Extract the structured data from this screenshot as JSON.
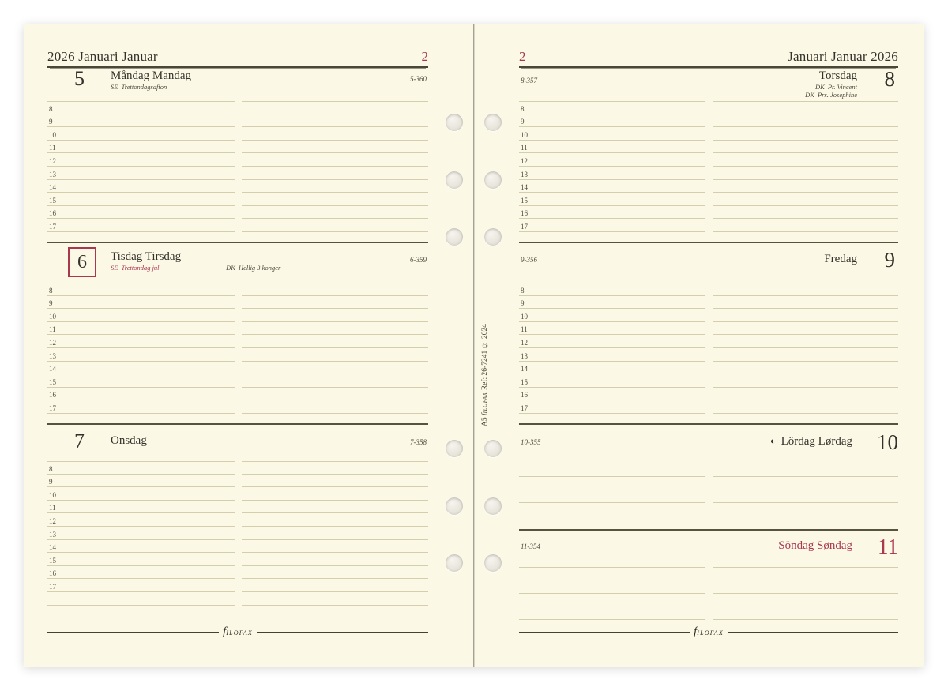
{
  "colors": {
    "accent": "#a93750",
    "paper": "#fbf8e6",
    "rule": "#d5cead"
  },
  "hours": [
    "8",
    "9",
    "10",
    "11",
    "12",
    "13",
    "14",
    "15",
    "16",
    "17"
  ],
  "left_page": {
    "header_title": "2026 Januari Januar",
    "week_number": "2",
    "days": [
      {
        "num": "5",
        "title": "Måndag Mandag",
        "daycount": "5-360",
        "note1_code": "SE",
        "note1_name": "Trettondagsafton"
      },
      {
        "num": "6",
        "title": "Tisdag Tirsdag",
        "daycount": "6-359",
        "note1_code": "SE",
        "note1_name": "Trettondag jul",
        "note2_code": "DK",
        "note2_name": "Hellig 3 konger"
      },
      {
        "num": "7",
        "title": "Onsdag",
        "daycount": "7-358"
      }
    ]
  },
  "right_page": {
    "week_number": "2",
    "header_title": "Januari Januar 2026",
    "days": [
      {
        "num": "8",
        "title": "Torsdag",
        "daycount": "8-357",
        "note1_code": "DK",
        "note1_name": "Pr. Vincent",
        "note2_code": "DK",
        "note2_name": "Prs. Josephine"
      },
      {
        "num": "9",
        "title": "Fredag",
        "daycount": "9-356"
      },
      {
        "num": "10",
        "title": "Lördag Lørdag",
        "daycount": "10-355",
        "moon_icon": "◐"
      },
      {
        "num": "11",
        "title": "Söndag Søndag",
        "daycount": "11-354"
      }
    ]
  },
  "spine": {
    "size_label": "A5",
    "brand_initial": "f",
    "brand_rest": "ilofax",
    "ref_text": "Ref: 26-7241 © 2024"
  },
  "brand": {
    "initial": "f",
    "rest": "ilofax"
  }
}
